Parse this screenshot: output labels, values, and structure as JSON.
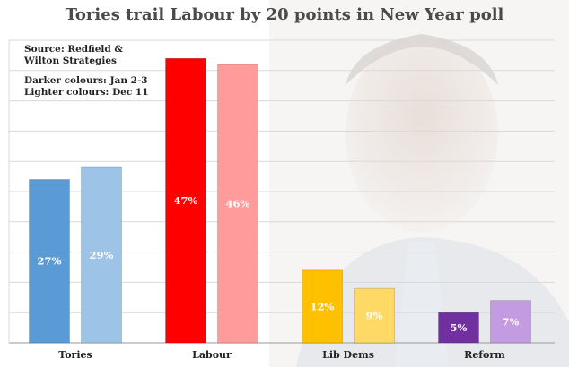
{
  "chart_data": {
    "type": "bar",
    "title": "Tories trail Labour by 20 points in New Year poll",
    "annotations": {
      "source": "Source: Redfield & Wilton Strategies",
      "colors_dark": "Darker colours: Jan 2-3",
      "colors_light": "Lighter colours: Dec 11"
    },
    "categories": [
      "Tories",
      "Labour",
      "Lib Dems",
      "Reform"
    ],
    "series": [
      {
        "values": [
          27,
          47,
          12,
          5
        ],
        "labels": [
          "27%",
          "47%",
          "12%",
          "5%"
        ],
        "colors": [
          "#5b9bd5",
          "#ff0000",
          "#ffc000",
          "#7030a0"
        ]
      },
      {
        "values": [
          29,
          46,
          9,
          7
        ],
        "labels": [
          "29%",
          "46%",
          "9%",
          "7%"
        ],
        "colors": [
          "#9dc3e6",
          "#ff9b9b",
          "#ffd966",
          "#c39be0"
        ]
      }
    ],
    "ylim": [
      0,
      50
    ],
    "grid": true,
    "xlabel": "",
    "ylabel": ""
  }
}
